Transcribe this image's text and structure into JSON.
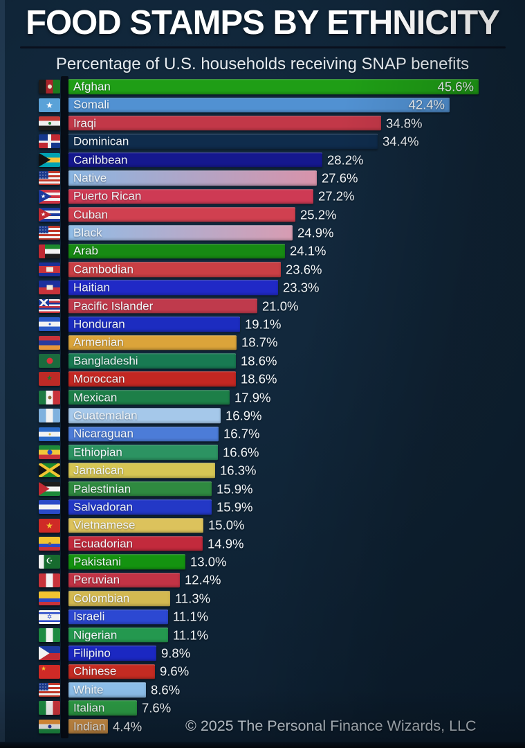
{
  "header": {
    "title": "FOOD STAMPS BY ETHNICITY",
    "subtitle": "Percentage of U.S. households receiving SNAP benefits"
  },
  "footer": {
    "credit": "© 2025 The Personal Finance Wizards, LLC"
  },
  "chart_data": {
    "type": "bar",
    "orientation": "horizontal",
    "title": "FOOD STAMPS BY ETHNICITY",
    "subtitle": "Percentage of U.S. households receiving SNAP benefits",
    "unit": "%",
    "xlim": [
      0,
      46
    ],
    "grid": false,
    "value_labels": true,
    "rows": [
      {
        "label": "Afghan",
        "value": 45.6,
        "display": "45.6%",
        "bar_color": "#1f9e16",
        "flag": {
          "icon": "afghanistan-flag-icon",
          "kind": "stripes",
          "dir": "v",
          "colors": [
            "#1b1b1b",
            "#a8242a",
            "#1d7a1f"
          ],
          "emblem": {
            "shape": "circle",
            "color": "#e9e5c9",
            "size": 6
          }
        }
      },
      {
        "label": "Somali",
        "value": 42.4,
        "display": "42.4%",
        "bar_color": "#5191d2",
        "flag": {
          "icon": "somalia-flag-icon",
          "kind": "stripes",
          "dir": "h",
          "colors": [
            "#5aa2d8"
          ],
          "emblem": {
            "shape": "star",
            "color": "#ffffff",
            "size": 12
          }
        }
      },
      {
        "label": "Iraqi",
        "value": 34.8,
        "display": "34.8%",
        "bar_color": "#c23848",
        "flag": {
          "icon": "iraq-flag-icon",
          "kind": "stripes",
          "dir": "h",
          "colors": [
            "#c23a35",
            "#efefef",
            "#1c1c1c"
          ],
          "emblem": {
            "shape": "circle",
            "color": "#1e7a2e",
            "size": 4
          }
        }
      },
      {
        "label": "Dominican",
        "value": 34.4,
        "display": "34.4%",
        "bar_color": "#0f2c4c",
        "flag": {
          "icon": "dominican-republic-flag-icon",
          "kind": "dr",
          "colors": [
            "#14378c",
            "#c12a33"
          ]
        }
      },
      {
        "label": "Caribbean",
        "value": 28.2,
        "display": "28.2%",
        "bar_color": "#15188e",
        "flag": {
          "icon": "bahamas-flag-icon",
          "kind": "stripes",
          "dir": "h",
          "colors": [
            "#00a3b4",
            "#f5c23c",
            "#00a3b4"
          ],
          "triangle": {
            "color": "#101010",
            "depth": 0.55
          }
        }
      },
      {
        "label": "Native",
        "value": 27.6,
        "display": "27.6%",
        "bar_color": "#8ab6e2",
        "bar_color2": "#d893aa",
        "flag": {
          "icon": "usa-flag-icon",
          "kind": "us"
        }
      },
      {
        "label": "Puerto Rican",
        "value": 27.2,
        "display": "27.2%",
        "bar_color": "#ce3a54",
        "flag": {
          "icon": "puerto-rico-flag-icon",
          "kind": "stripes",
          "dir": "h",
          "colors": [
            "#cf3545",
            "#f2f2f2",
            "#cf3545",
            "#f2f2f2",
            "#cf3545"
          ],
          "triangle": {
            "color": "#1b3a9e",
            "depth": 0.6
          },
          "emblem": {
            "shape": "star",
            "color": "#ffffff",
            "size": 8,
            "pos": "hoist"
          }
        }
      },
      {
        "label": "Cuban",
        "value": 25.2,
        "display": "25.2%",
        "bar_color": "#d04050",
        "flag": {
          "icon": "cuba-flag-icon",
          "kind": "stripes",
          "dir": "h",
          "colors": [
            "#1b3a9e",
            "#f2f2f2",
            "#1b3a9e",
            "#f2f2f2",
            "#1b3a9e"
          ],
          "triangle": {
            "color": "#c12a33",
            "depth": 0.6
          },
          "emblem": {
            "shape": "star",
            "color": "#ffffff",
            "size": 8,
            "pos": "hoist"
          }
        }
      },
      {
        "label": "Black",
        "value": 24.9,
        "display": "24.9%",
        "bar_color": "#90bce6",
        "bar_color2": "#d79cb2",
        "flag": {
          "icon": "usa-flag-icon",
          "kind": "us"
        }
      },
      {
        "label": "Arab",
        "value": 24.1,
        "display": "24.1%",
        "bar_color": "#178a13",
        "flag": {
          "icon": "uae-flag-icon",
          "kind": "stripes",
          "dir": "h",
          "colors": [
            "#1c8a2e",
            "#f2f2f2",
            "#1c1c1c"
          ],
          "hoist": {
            "color": "#c12a33",
            "width": 0.3
          }
        }
      },
      {
        "label": "Cambodian",
        "value": 23.6,
        "display": "23.6%",
        "bar_color": "#c93f44",
        "flag": {
          "icon": "cambodia-flag-icon",
          "kind": "stripes",
          "dir": "h",
          "colors": [
            "#1c2f96",
            "#c8333b",
            "#1c2f96"
          ],
          "weights": [
            1,
            2,
            1
          ],
          "emblem": {
            "shape": "rect",
            "color": "#f0ead8",
            "w": 10,
            "h": 7
          }
        }
      },
      {
        "label": "Haitian",
        "value": 23.3,
        "display": "23.3%",
        "bar_color": "#2029c6",
        "flag": {
          "icon": "haiti-flag-icon",
          "kind": "stripes",
          "dir": "h",
          "colors": [
            "#1c2f9e",
            "#c8333b"
          ],
          "emblem": {
            "shape": "rect",
            "color": "#f0ead8",
            "w": 9,
            "h": 7
          }
        }
      },
      {
        "label": "Pacific Islander",
        "value": 21.0,
        "display": "21.0%",
        "bar_color": "#bf3a4c",
        "flag": {
          "icon": "hawaii-flag-icon",
          "kind": "stripes",
          "dir": "h",
          "colors": [
            "#f2f2f2",
            "#c8333b",
            "#1b3a9e",
            "#f2f2f2",
            "#c8333b",
            "#1b3a9e",
            "#f2f2f2",
            "#c8333b"
          ],
          "canton": "uk"
        }
      },
      {
        "label": "Honduran",
        "value": 19.1,
        "display": "19.1%",
        "bar_color": "#1c2cc0",
        "flag": {
          "icon": "honduras-flag-icon",
          "kind": "stripes",
          "dir": "h",
          "colors": [
            "#2a59c8",
            "#f2f2f2",
            "#2a59c8"
          ],
          "emblem": {
            "shape": "circle",
            "color": "#2a59c8",
            "size": 3
          }
        }
      },
      {
        "label": "Armenian",
        "value": 18.7,
        "display": "18.7%",
        "bar_color": "#dba43a",
        "flag": {
          "icon": "armenia-flag-icon",
          "kind": "stripes",
          "dir": "h",
          "colors": [
            "#c8333b",
            "#2a3a9e",
            "#e8963a"
          ]
        }
      },
      {
        "label": "Bangladeshi",
        "value": 18.6,
        "display": "18.6%",
        "bar_color": "#187a52",
        "flag": {
          "icon": "bangladesh-flag-icon",
          "kind": "stripes",
          "dir": "h",
          "colors": [
            "#1a6b3e"
          ],
          "emblem": {
            "shape": "circle",
            "color": "#d8333b",
            "size": 9
          }
        }
      },
      {
        "label": "Moroccan",
        "value": 18.6,
        "display": "18.6%",
        "bar_color": "#c32722",
        "flag": {
          "icon": "morocco-flag-icon",
          "kind": "stripes",
          "dir": "h",
          "colors": [
            "#bd2a26"
          ],
          "emblem": {
            "shape": "star",
            "color": "#1d7a2f",
            "size": 10
          }
        }
      },
      {
        "label": "Mexican",
        "value": 17.9,
        "display": "17.9%",
        "bar_color": "#1d7f48",
        "flag": {
          "icon": "mexico-flag-icon",
          "kind": "stripes",
          "dir": "v",
          "colors": [
            "#1c7a42",
            "#f2f2f2",
            "#c8333b"
          ],
          "emblem": {
            "shape": "circle",
            "color": "#8a6b3a",
            "size": 5
          }
        }
      },
      {
        "label": "Guatemalan",
        "value": 16.9,
        "display": "16.9%",
        "bar_color": "#a5c8ea",
        "flag": {
          "icon": "guatemala-flag-icon",
          "kind": "stripes",
          "dir": "v",
          "colors": [
            "#7fb1de",
            "#f2f2f2",
            "#7fb1de"
          ]
        }
      },
      {
        "label": "Nicaraguan",
        "value": 16.7,
        "display": "16.7%",
        "bar_color": "#4c7cd8",
        "flag": {
          "icon": "nicaragua-flag-icon",
          "kind": "stripes",
          "dir": "h",
          "colors": [
            "#2a6ac8",
            "#f2f2f2",
            "#2a6ac8"
          ],
          "emblem": {
            "shape": "circle",
            "color": "#d8b83a",
            "size": 3
          }
        }
      },
      {
        "label": "Ethiopian",
        "value": 16.6,
        "display": "16.6%",
        "bar_color": "#2c9362",
        "flag": {
          "icon": "ethiopia-flag-icon",
          "kind": "stripes",
          "dir": "h",
          "colors": [
            "#1d8a3a",
            "#f2c83a",
            "#c8333b"
          ],
          "emblem": {
            "shape": "circle",
            "color": "#2a4ac8",
            "size": 7
          }
        }
      },
      {
        "label": "Jamaican",
        "value": 16.3,
        "display": "16.3%",
        "bar_color": "#d6c654",
        "flag": {
          "icon": "jamaica-flag-icon",
          "kind": "jamaica",
          "colors": {
            "green": "#1d8a2e",
            "gold": "#f2c431",
            "black": "#141414"
          }
        }
      },
      {
        "label": "Palestinian",
        "value": 15.9,
        "display": "15.9%",
        "bar_color": "#2f8a40",
        "flag": {
          "icon": "palestine-flag-icon",
          "kind": "stripes",
          "dir": "h",
          "colors": [
            "#1c1c1c",
            "#f2f2f2",
            "#1d8a3a"
          ],
          "triangle": {
            "color": "#c12a33",
            "depth": 0.5
          }
        }
      },
      {
        "label": "Salvadoran",
        "value": 15.9,
        "display": "15.9%",
        "bar_color": "#2338c6",
        "flag": {
          "icon": "el-salvador-flag-icon",
          "kind": "stripes",
          "dir": "h",
          "colors": [
            "#2a4ac8",
            "#f2f2f2",
            "#2a4ac8"
          ]
        }
      },
      {
        "label": "Vietnamese",
        "value": 15.0,
        "display": "15.0%",
        "bar_color": "#dcc25c",
        "flag": {
          "icon": "vietnam-flag-icon",
          "kind": "stripes",
          "dir": "h",
          "colors": [
            "#cf2a26"
          ],
          "emblem": {
            "shape": "star",
            "color": "#f2c431",
            "size": 12
          }
        }
      },
      {
        "label": "Ecuadorian",
        "value": 14.9,
        "display": "14.9%",
        "bar_color": "#c22a3c",
        "flag": {
          "icon": "ecuador-flag-icon",
          "kind": "stripes",
          "dir": "h",
          "colors": [
            "#f2c431",
            "#2a4ac8",
            "#c8333b"
          ],
          "weights": [
            2,
            1,
            1
          ],
          "emblem": {
            "shape": "circle",
            "color": "#8a6b3a",
            "size": 4
          }
        }
      },
      {
        "label": "Pakistani",
        "value": 13.0,
        "display": "13.0%",
        "bar_color": "#149310",
        "flag": {
          "icon": "pakistan-flag-icon",
          "kind": "stripes",
          "dir": "v",
          "colors": [
            "#f2f2f2",
            "#176b2e"
          ],
          "weights": [
            1,
            3
          ],
          "emblem": {
            "shape": "char",
            "char": "☪",
            "color": "#ffffff",
            "size": 11
          }
        }
      },
      {
        "label": "Peruvian",
        "value": 12.4,
        "display": "12.4%",
        "bar_color": "#c23345",
        "flag": {
          "icon": "peru-flag-icon",
          "kind": "stripes",
          "dir": "v",
          "colors": [
            "#c8333b",
            "#f2f2f2",
            "#c8333b"
          ]
        }
      },
      {
        "label": "Colombian",
        "value": 11.3,
        "display": "11.3%",
        "bar_color": "#d3b951",
        "flag": {
          "icon": "colombia-flag-icon",
          "kind": "stripes",
          "dir": "h",
          "colors": [
            "#f2c431",
            "#2a4ac8",
            "#c8333b"
          ],
          "weights": [
            2,
            1,
            1
          ]
        }
      },
      {
        "label": "Israeli",
        "value": 11.1,
        "display": "11.1%",
        "bar_color": "#2c48d2",
        "flag": {
          "icon": "israel-flag-icon",
          "kind": "stripes",
          "dir": "h",
          "colors": [
            "#f2f2f2",
            "#2a4ac8",
            "#f2f2f2",
            "#2a4ac8",
            "#f2f2f2"
          ],
          "weights": [
            1,
            1,
            3,
            1,
            1
          ],
          "emblem": {
            "shape": "char",
            "char": "✡",
            "color": "#2a4ac8",
            "size": 9
          }
        }
      },
      {
        "label": "Nigerian",
        "value": 11.1,
        "display": "11.1%",
        "bar_color": "#24984f",
        "flag": {
          "icon": "nigeria-flag-icon",
          "kind": "stripes",
          "dir": "v",
          "colors": [
            "#1d8a42",
            "#f2f2f2",
            "#1d8a42"
          ]
        }
      },
      {
        "label": "Filipino",
        "value": 9.8,
        "display": "9.8%",
        "bar_color": "#1b28c2",
        "flag": {
          "icon": "philippines-flag-icon",
          "kind": "stripes",
          "dir": "h",
          "colors": [
            "#1b3a9e",
            "#c12a33"
          ],
          "triangle": {
            "color": "#f2f2f2",
            "depth": 0.5
          }
        }
      },
      {
        "label": "Chinese",
        "value": 9.6,
        "display": "9.6%",
        "bar_color": "#c42b22",
        "flag": {
          "icon": "china-flag-icon",
          "kind": "stripes",
          "dir": "h",
          "colors": [
            "#cf2a26"
          ],
          "emblem": {
            "shape": "star",
            "color": "#f2c431",
            "size": 9,
            "pos": "tl"
          }
        }
      },
      {
        "label": "White",
        "value": 8.6,
        "display": "8.6%",
        "bar_color": "#8cbde8",
        "flag": {
          "icon": "usa-flag-icon",
          "kind": "us"
        }
      },
      {
        "label": "Italian",
        "value": 7.6,
        "display": "7.6%",
        "bar_color": "#2c9a44",
        "flag": {
          "icon": "italy-flag-icon",
          "kind": "stripes",
          "dir": "v",
          "colors": [
            "#1d8a42",
            "#f2f2f2",
            "#c8333b"
          ]
        }
      },
      {
        "label": "Indian",
        "value": 4.4,
        "display": "4.4%",
        "bar_color": "#cc8f46",
        "flag": {
          "icon": "india-flag-icon",
          "kind": "stripes",
          "dir": "h",
          "colors": [
            "#e8943a",
            "#f2f2f2",
            "#1d8a42"
          ],
          "emblem": {
            "shape": "circle",
            "color": "#2a3a9e",
            "size": 5
          }
        }
      }
    ]
  }
}
